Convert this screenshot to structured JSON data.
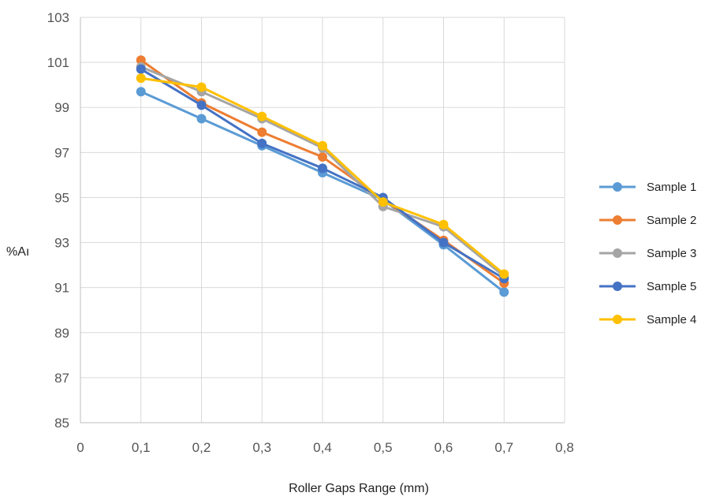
{
  "chart_data": {
    "type": "line",
    "title": "",
    "xlabel": "Roller Gaps Range (mm)",
    "ylabel": "%Aı",
    "xlim": [
      0,
      0.8
    ],
    "ylim": [
      85,
      103
    ],
    "x_ticks": [
      "0",
      "0,1",
      "0,2",
      "0,3",
      "0,4",
      "0,5",
      "0,6",
      "0,7",
      "0,8"
    ],
    "y_ticks": [
      "85",
      "87",
      "89",
      "91",
      "93",
      "95",
      "97",
      "99",
      "101",
      "103"
    ],
    "grid": "vertical and horizontal",
    "legend_position": "right",
    "x": [
      0.1,
      0.2,
      0.3,
      0.4,
      0.5,
      0.6,
      0.7
    ],
    "series": [
      {
        "name": "Sample 1",
        "color": "#5B9BD5",
        "values": [
          99.7,
          98.5,
          97.3,
          96.1,
          94.9,
          92.9,
          90.8
        ]
      },
      {
        "name": "Sample 2",
        "color": "#ED7D31",
        "values": [
          101.1,
          99.2,
          97.9,
          96.8,
          94.9,
          93.1,
          91.2
        ]
      },
      {
        "name": "Sample 3",
        "color": "#A5A5A5",
        "values": [
          100.8,
          99.7,
          98.5,
          97.2,
          94.6,
          93.7,
          91.5
        ]
      },
      {
        "name": "Sample 5",
        "color": "#4472C4",
        "values": [
          100.7,
          99.1,
          97.4,
          96.3,
          95.0,
          93.0,
          91.4
        ]
      },
      {
        "name": "Sample 4",
        "color": "#FFC000",
        "values": [
          100.3,
          99.9,
          98.6,
          97.3,
          94.8,
          93.8,
          91.6
        ]
      }
    ]
  }
}
